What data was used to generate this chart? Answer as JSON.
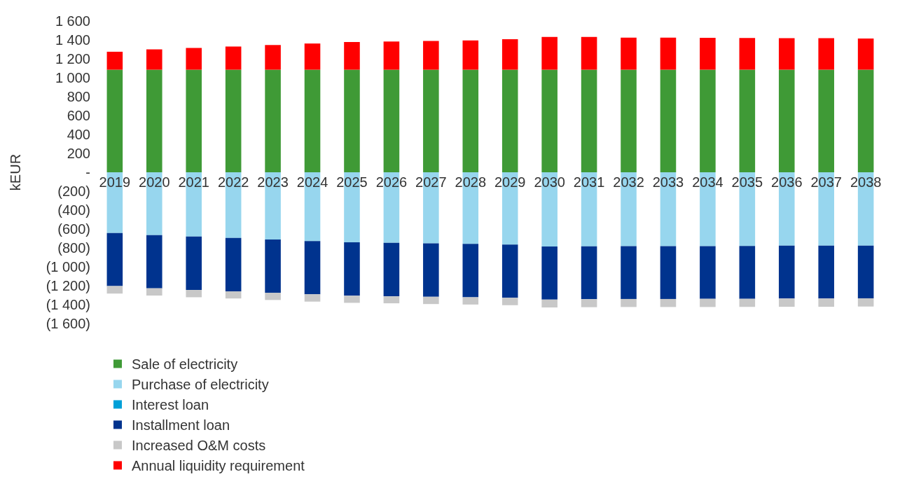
{
  "chart_data": {
    "type": "bar",
    "ylabel": "kEUR",
    "stacked": true,
    "grid": false,
    "legend": "bottom",
    "categories": [
      "2019",
      "2020",
      "2021",
      "2022",
      "2023",
      "2024",
      "2025",
      "2026",
      "2027",
      "2028",
      "2029",
      "2030",
      "2031",
      "2032",
      "2033",
      "2034",
      "2035",
      "2036",
      "2037",
      "2038"
    ],
    "ylim": [
      -1600,
      1600
    ],
    "yticks": [
      {
        "value": -1600,
        "label": "(1 600)"
      },
      {
        "value": -1400,
        "label": "(1 400)"
      },
      {
        "value": -1200,
        "label": "(1 200)"
      },
      {
        "value": -1000,
        "label": "(1 000)"
      },
      {
        "value": -800,
        "label": "(800)"
      },
      {
        "value": -600,
        "label": "(600)"
      },
      {
        "value": -400,
        "label": "(400)"
      },
      {
        "value": -200,
        "label": "(200)"
      },
      {
        "value": 0,
        "label": "-"
      },
      {
        "value": 200,
        "label": "200"
      },
      {
        "value": 400,
        "label": "400"
      },
      {
        "value": 600,
        "label": "600"
      },
      {
        "value": 800,
        "label": "800"
      },
      {
        "value": 1000,
        "label": "1 000"
      },
      {
        "value": 1200,
        "label": "1 200"
      },
      {
        "value": 1400,
        "label": "1 400"
      },
      {
        "value": 1600,
        "label": "1 600"
      }
    ],
    "series": [
      {
        "name": "Sale of electricity",
        "color": "#3f9a36",
        "values": [
          1085,
          1085,
          1085,
          1085,
          1085,
          1085,
          1085,
          1085,
          1085,
          1085,
          1085,
          1085,
          1085,
          1085,
          1085,
          1085,
          1085,
          1085,
          1085,
          1085
        ]
      },
      {
        "name": "Purchase of electricity",
        "color": "#97d6ee",
        "values": [
          -642,
          -664,
          -679,
          -695,
          -711,
          -727,
          -740,
          -746,
          -751,
          -758,
          -764,
          -786,
          -783,
          -781,
          -781,
          -781,
          -779,
          -776,
          -776,
          -776
        ]
      },
      {
        "name": "Interest loan",
        "color": "#00a0d8",
        "values": [
          0,
          0,
          0,
          0,
          0,
          0,
          0,
          0,
          0,
          0,
          0,
          0,
          0,
          0,
          0,
          0,
          0,
          0,
          0,
          0
        ]
      },
      {
        "name": "Installment loan",
        "color": "#00338e",
        "values": [
          -561,
          -563,
          -566,
          -564,
          -563,
          -563,
          -566,
          -566,
          -566,
          -564,
          -563,
          -561,
          -560,
          -559,
          -559,
          -557,
          -559,
          -559,
          -559,
          -557
        ]
      },
      {
        "name": "Increased O&M costs",
        "color": "#c8c8c8",
        "values": [
          -80,
          -77,
          -77,
          -76,
          -77,
          -78,
          -75,
          -74,
          -77,
          -77,
          -79,
          -83,
          -84,
          -85,
          -85,
          -87,
          -86,
          -88,
          -88,
          -87
        ]
      },
      {
        "name": "Annual liquidity requirement",
        "color": "#ff0000",
        "values": [
          190,
          215,
          230,
          245,
          261,
          277,
          293,
          298,
          304,
          309,
          323,
          346,
          346,
          340,
          340,
          338,
          335,
          333,
          333,
          330
        ]
      }
    ]
  }
}
